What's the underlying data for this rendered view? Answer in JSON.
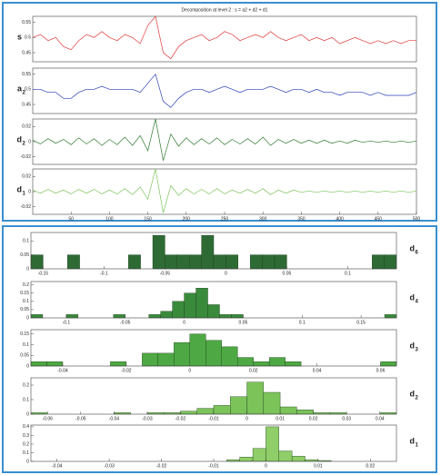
{
  "chart_data": [
    {
      "type": "line",
      "title": "Decomposition at level 2 : s = a2 + d2 + d1",
      "x": [
        0,
        10,
        20,
        30,
        40,
        50,
        60,
        70,
        80,
        90,
        100,
        110,
        120,
        130,
        140,
        150,
        160,
        170,
        180,
        190,
        200,
        210,
        220,
        230,
        240,
        250,
        260,
        270,
        280,
        290,
        300,
        310,
        320,
        330,
        340,
        350,
        360,
        370,
        380,
        390,
        400,
        410,
        420,
        430,
        440,
        450,
        460,
        470,
        480,
        490,
        500
      ],
      "xlim": [
        0,
        500
      ],
      "xticks": [
        50,
        100,
        150,
        200,
        250,
        300,
        350,
        400,
        450,
        500
      ],
      "panels": [
        {
          "name": "s",
          "color": "#e03a3a",
          "ylim": [
            0.42,
            0.57
          ],
          "yticks": [
            0.45,
            0.5,
            0.55
          ],
          "values": [
            0.5,
            0.51,
            0.49,
            0.5,
            0.47,
            0.46,
            0.49,
            0.51,
            0.5,
            0.52,
            0.5,
            0.49,
            0.51,
            0.5,
            0.48,
            0.54,
            0.57,
            0.45,
            0.43,
            0.47,
            0.49,
            0.5,
            0.51,
            0.49,
            0.5,
            0.52,
            0.51,
            0.49,
            0.5,
            0.51,
            0.5,
            0.52,
            0.5,
            0.49,
            0.5,
            0.51,
            0.49,
            0.5,
            0.49,
            0.5,
            0.48,
            0.49,
            0.5,
            0.49,
            0.48,
            0.49,
            0.48,
            0.49,
            0.48,
            0.49,
            0.49
          ]
        },
        {
          "name": "a",
          "subscript": "2",
          "color": "#2b3fb5",
          "ylim": [
            0.42,
            0.57
          ],
          "yticks": [
            0.45,
            0.5,
            0.55
          ],
          "values": [
            0.5,
            0.5,
            0.49,
            0.49,
            0.47,
            0.47,
            0.49,
            0.5,
            0.5,
            0.51,
            0.5,
            0.5,
            0.5,
            0.5,
            0.49,
            0.52,
            0.55,
            0.46,
            0.44,
            0.47,
            0.49,
            0.5,
            0.5,
            0.49,
            0.5,
            0.51,
            0.5,
            0.49,
            0.5,
            0.5,
            0.5,
            0.51,
            0.5,
            0.49,
            0.5,
            0.5,
            0.49,
            0.5,
            0.49,
            0.49,
            0.48,
            0.49,
            0.49,
            0.49,
            0.48,
            0.49,
            0.48,
            0.48,
            0.48,
            0.48,
            0.49
          ]
        },
        {
          "name": "d",
          "subscript": "2",
          "color": "#2f7a2f",
          "ylim": [
            -0.03,
            0.03
          ],
          "yticks": [
            -0.02,
            0,
            0.02
          ],
          "values": [
            0.002,
            -0.003,
            0.004,
            -0.002,
            0.003,
            -0.004,
            0.005,
            -0.003,
            0.004,
            -0.005,
            0.003,
            -0.004,
            0.006,
            -0.005,
            0.008,
            -0.012,
            0.03,
            -0.025,
            0.01,
            -0.006,
            0.005,
            -0.004,
            0.004,
            -0.003,
            0.005,
            -0.004,
            0.003,
            -0.003,
            0.004,
            -0.003,
            0.006,
            -0.005,
            0.003,
            -0.002,
            0.003,
            -0.002,
            0.002,
            -0.002,
            0.002,
            -0.002,
            0.001,
            -0.002,
            0.002,
            -0.001,
            0.001,
            -0.001,
            0.001,
            -0.001,
            0.001,
            -0.001,
            0.001
          ]
        },
        {
          "name": "d",
          "subscript": "1",
          "color": "#7cc35a",
          "ylim": [
            -0.03,
            0.03
          ],
          "yticks": [
            -0.02,
            0,
            0.02
          ],
          "values": [
            0.002,
            -0.002,
            0.003,
            -0.002,
            0.002,
            -0.003,
            0.003,
            -0.002,
            0.003,
            -0.003,
            0.002,
            -0.003,
            0.004,
            -0.004,
            0.006,
            -0.01,
            0.03,
            -0.028,
            0.008,
            -0.005,
            0.004,
            -0.003,
            0.003,
            -0.003,
            0.004,
            -0.003,
            0.002,
            -0.002,
            0.003,
            -0.002,
            0.004,
            -0.004,
            0.002,
            -0.002,
            0.002,
            -0.001,
            0.001,
            -0.001,
            0.001,
            -0.001,
            0.001,
            -0.001,
            0.001,
            -0.001,
            0.001,
            -0.001,
            0.001,
            -0.001,
            0.001,
            -0.001,
            0.001
          ]
        }
      ]
    },
    {
      "type": "histogram",
      "panels": [
        {
          "name": "d",
          "subscript": "6",
          "color": "#2e6b34",
          "xlim": [
            -0.16,
            0.14
          ],
          "xticks": [
            -0.15,
            -0.1,
            -0.05,
            0,
            0.05,
            0.1
          ],
          "ylim": [
            0,
            0.13
          ],
          "yticks": [
            0,
            0.05,
            0.1
          ],
          "bins": [
            -0.16,
            -0.15,
            -0.14,
            -0.13,
            -0.12,
            -0.11,
            -0.1,
            -0.09,
            -0.08,
            -0.07,
            -0.06,
            -0.05,
            -0.04,
            -0.03,
            -0.02,
            -0.01,
            0,
            0.01,
            0.02,
            0.03,
            0.04,
            0.05,
            0.06,
            0.07,
            0.08,
            0.09,
            0.1,
            0.11,
            0.12,
            0.13,
            0.14
          ],
          "counts": [
            0.05,
            0,
            0,
            0.05,
            0,
            0,
            0,
            0,
            0.05,
            0,
            0.12,
            0.05,
            0.05,
            0.05,
            0.12,
            0.05,
            0.05,
            0,
            0.05,
            0.05,
            0.05,
            0,
            0,
            0,
            0,
            0,
            0,
            0,
            0.05,
            0.05
          ]
        },
        {
          "name": "d",
          "subscript": "4",
          "color": "#3a8a3c",
          "xlim": [
            -0.13,
            0.18
          ],
          "xticks": [
            -0.1,
            -0.05,
            0,
            0.05,
            0.1,
            0.15
          ],
          "ylim": [
            0,
            0.22
          ],
          "yticks": [
            0,
            0.05,
            0.1,
            0.15,
            0.2
          ],
          "bins": [
            -0.13,
            -0.12,
            -0.11,
            -0.1,
            -0.09,
            -0.08,
            -0.07,
            -0.06,
            -0.05,
            -0.04,
            -0.03,
            -0.02,
            -0.01,
            0,
            0.01,
            0.02,
            0.03,
            0.04,
            0.05,
            0.06,
            0.07,
            0.08,
            0.09,
            0.1,
            0.11,
            0.12,
            0.13,
            0.14,
            0.15,
            0.16,
            0.17,
            0.18
          ],
          "counts": [
            0.02,
            0,
            0,
            0.02,
            0,
            0,
            0,
            0.02,
            0,
            0,
            0.02,
            0.04,
            0.1,
            0.15,
            0.18,
            0.08,
            0.02,
            0.02,
            0,
            0,
            0,
            0,
            0,
            0,
            0,
            0,
            0,
            0,
            0,
            0,
            0.02
          ]
        },
        {
          "name": "d",
          "subscript": "3",
          "color": "#4ea843",
          "xlim": [
            -0.05,
            0.065
          ],
          "xticks": [
            -0.04,
            -0.02,
            0,
            0.02,
            0.04,
            0.06
          ],
          "ylim": [
            0,
            0.17
          ],
          "yticks": [
            0,
            0.05,
            0.1,
            0.15
          ],
          "bins": [
            -0.05,
            -0.045,
            -0.04,
            -0.035,
            -0.03,
            -0.025,
            -0.02,
            -0.015,
            -0.01,
            -0.005,
            0,
            0.005,
            0.01,
            0.015,
            0.02,
            0.025,
            0.03,
            0.035,
            0.04,
            0.045,
            0.05,
            0.055,
            0.06,
            0.065
          ],
          "counts": [
            0.02,
            0.02,
            0,
            0,
            0,
            0.02,
            0,
            0.06,
            0.06,
            0.11,
            0.15,
            0.12,
            0.09,
            0.04,
            0.02,
            0.04,
            0.02,
            0,
            0,
            0,
            0,
            0,
            0.02
          ]
        },
        {
          "name": "d",
          "subscript": "2",
          "color": "#7cc35a",
          "xlim": [
            -0.065,
            0.045
          ],
          "xticks": [
            -0.06,
            -0.05,
            -0.04,
            -0.03,
            -0.02,
            -0.01,
            0,
            0.01,
            0.02,
            0.03,
            0.04
          ],
          "ylim": [
            0,
            0.25
          ],
          "yticks": [
            0,
            0.1,
            0.2
          ],
          "bins": [
            -0.065,
            -0.06,
            -0.055,
            -0.05,
            -0.045,
            -0.04,
            -0.035,
            -0.03,
            -0.025,
            -0.02,
            -0.015,
            -0.01,
            -0.005,
            0,
            0.005,
            0.01,
            0.015,
            0.02,
            0.025,
            0.03,
            0.035,
            0.04,
            0.045
          ],
          "counts": [
            0.01,
            0,
            0,
            0,
            0,
            0.01,
            0,
            0.01,
            0.01,
            0.02,
            0.04,
            0.06,
            0.12,
            0.22,
            0.15,
            0.05,
            0.03,
            0.01,
            0.01,
            0,
            0,
            0.01
          ]
        },
        {
          "name": "d",
          "subscript": "1",
          "color": "#8fce68",
          "xlim": [
            -0.045,
            0.025
          ],
          "xticks": [
            -0.04,
            -0.03,
            -0.02,
            -0.01,
            0,
            0.01,
            0.02
          ],
          "ylim": [
            0,
            0.42
          ],
          "yticks": [
            0,
            0.1,
            0.2,
            0.3,
            0.4
          ],
          "bins": [
            -0.045,
            -0.0425,
            -0.04,
            -0.0375,
            -0.035,
            -0.0325,
            -0.03,
            -0.0275,
            -0.025,
            -0.0225,
            -0.02,
            -0.0175,
            -0.015,
            -0.0125,
            -0.01,
            -0.0075,
            -0.005,
            -0.0025,
            0,
            0.0025,
            0.005,
            0.0075,
            0.01,
            0.0125,
            0.015,
            0.0175,
            0.02,
            0.0225,
            0.025
          ],
          "counts": [
            0,
            0,
            0,
            0,
            0,
            0,
            0,
            0,
            0,
            0,
            0,
            0,
            0,
            0,
            0,
            0.02,
            0.05,
            0.15,
            0.4,
            0.12,
            0.06,
            0.02,
            0.01,
            0,
            0,
            0,
            0,
            0
          ]
        }
      ]
    }
  ]
}
